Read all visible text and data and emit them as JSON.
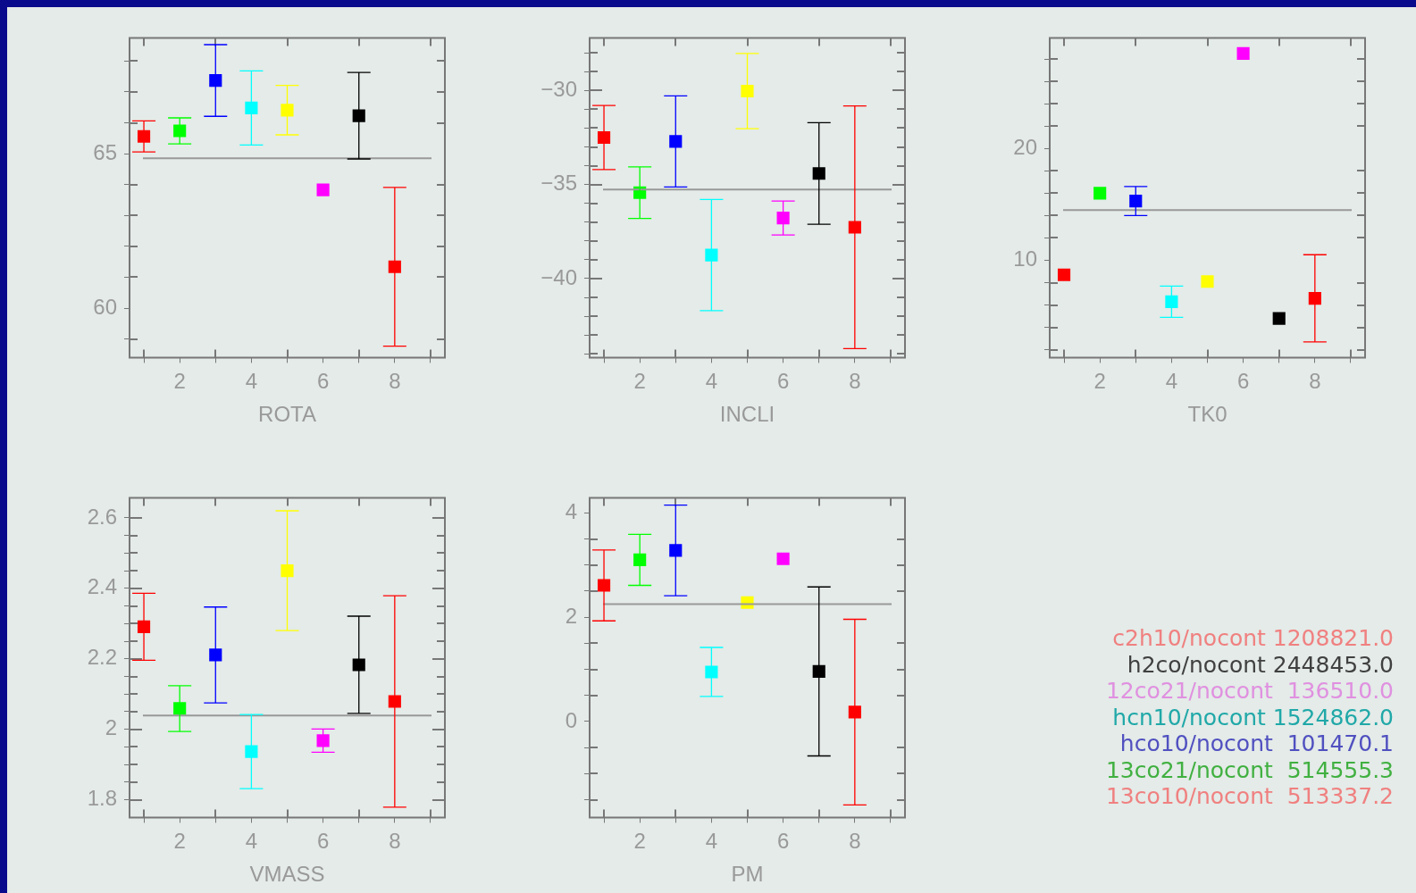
{
  "chart_data": [
    {
      "type": "scatter",
      "xlabel": "ROTA",
      "marker": "square",
      "grid": false,
      "legend": false,
      "x": [
        1,
        2,
        3,
        4,
        5,
        6,
        7,
        8
      ],
      "values": [
        65.56,
        65.74,
        67.37,
        66.48,
        66.41,
        63.83,
        66.23,
        61.34
      ],
      "errors": [
        0.5,
        0.42,
        1.16,
        1.2,
        0.8,
        null,
        1.4,
        2.57
      ],
      "colors": [
        "#ff0000",
        "#00ff00",
        "#0000ff",
        "#00ffff",
        "#ffff00",
        "#ff00ff",
        "#000000",
        "#ff0000"
      ],
      "ref_lines": [
        {
          "axis": "y",
          "value": 64.85,
          "color": "#999999"
        }
      ],
      "xlim": [
        0.6,
        9.4
      ],
      "xticks": [
        {
          "value": 1,
          "label": null
        },
        2,
        {
          "value": 3,
          "label": null
        },
        4,
        {
          "value": 5,
          "label": null
        },
        6,
        {
          "value": 7,
          "label": null
        },
        8,
        {
          "value": 9,
          "label": null
        }
      ],
      "ylim": [
        58.4,
        68.75
      ],
      "yticks": [
        {
          "value": 59,
          "label": null
        },
        60,
        {
          "value": 61,
          "label": null
        },
        {
          "value": 62,
          "label": null
        },
        {
          "value": 63,
          "label": null
        },
        {
          "value": 64,
          "label": null
        },
        65,
        {
          "value": 66,
          "label": null
        },
        {
          "value": 67,
          "label": null
        },
        {
          "value": 68,
          "label": null
        }
      ]
    },
    {
      "type": "scatter",
      "xlabel": "INCLI",
      "marker": "square",
      "grid": false,
      "legend": false,
      "x": [
        1,
        2,
        3,
        4,
        5,
        6,
        7,
        8
      ],
      "values": [
        -32.5,
        -35.43,
        -32.71,
        -38.75,
        -30.03,
        -36.78,
        -34.41,
        -37.27
      ],
      "errors": [
        1.7,
        1.37,
        2.42,
        2.96,
        2,
        0.9,
        2.7,
        6.45
      ],
      "colors": [
        "#ff0000",
        "#00ff00",
        "#0000ff",
        "#00ffff",
        "#ffff00",
        "#ff00ff",
        "#000000",
        "#ff0000"
      ],
      "ref_lines": [
        {
          "axis": "y",
          "value": -35.26,
          "color": "#999999"
        }
      ],
      "xlim": [
        0.6,
        9.4
      ],
      "xticks": [
        {
          "value": 1,
          "label": null
        },
        2,
        {
          "value": 3,
          "label": null
        },
        4,
        {
          "value": 5,
          "label": null
        },
        6,
        {
          "value": 7,
          "label": null
        },
        8,
        {
          "value": 9,
          "label": null
        }
      ],
      "ylim": [
        -44.2,
        -27.2
      ],
      "yticks": [
        {
          "value": -44,
          "label": null
        },
        {
          "value": -43,
          "label": null
        },
        {
          "value": -42,
          "label": null
        },
        {
          "value": -41,
          "label": null
        },
        {
          "value": -40,
          "label": "−40"
        },
        {
          "value": -39,
          "label": null
        },
        {
          "value": -38,
          "label": null
        },
        {
          "value": -37,
          "label": null
        },
        {
          "value": -36,
          "label": null
        },
        {
          "value": -35,
          "label": "−35"
        },
        {
          "value": -34,
          "label": null
        },
        {
          "value": -33,
          "label": null
        },
        {
          "value": -32,
          "label": null
        },
        {
          "value": -31,
          "label": null
        },
        {
          "value": -30,
          "label": "−30"
        },
        {
          "value": -29,
          "label": null
        },
        {
          "value": -28,
          "label": null
        }
      ]
    },
    {
      "type": "scatter",
      "xlabel": "TK0",
      "marker": "square",
      "grid": false,
      "legend": false,
      "x": [
        1,
        2,
        3,
        4,
        5,
        6,
        7,
        8
      ],
      "values": [
        8.7,
        16.0,
        15.3,
        6.3,
        8.1,
        28.5,
        4.8,
        6.6
      ],
      "errors": [
        null,
        null,
        1.3,
        1.4,
        null,
        null,
        null,
        3.9
      ],
      "colors": [
        "#ff0000",
        "#00ff00",
        "#0000ff",
        "#00ffff",
        "#ffff00",
        "#ff00ff",
        "#000000",
        "#ff0000"
      ],
      "ref_lines": [
        {
          "axis": "y",
          "value": 14.5,
          "color": "#999999"
        }
      ],
      "xlim": [
        0.6,
        9.4
      ],
      "xticks": [
        {
          "value": 1,
          "label": null
        },
        2,
        {
          "value": 3,
          "label": null
        },
        4,
        {
          "value": 5,
          "label": null
        },
        6,
        {
          "value": 7,
          "label": null
        },
        8,
        {
          "value": 9,
          "label": null
        }
      ],
      "ylim": [
        1.3,
        29.9
      ],
      "yticks": [
        {
          "value": 2,
          "label": null
        },
        {
          "value": 4,
          "label": null
        },
        {
          "value": 6,
          "label": null
        },
        {
          "value": 8,
          "label": null
        },
        10,
        {
          "value": 12,
          "label": null
        },
        {
          "value": 14,
          "label": null
        },
        {
          "value": 16,
          "label": null
        },
        {
          "value": 18,
          "label": null
        },
        20,
        {
          "value": 22,
          "label": null
        },
        {
          "value": 24,
          "label": null
        },
        {
          "value": 26,
          "label": null
        },
        {
          "value": 28,
          "label": null
        }
      ]
    },
    {
      "type": "scatter",
      "xlabel": "VMASS",
      "marker": "square",
      "grid": false,
      "legend": false,
      "x": [
        1,
        2,
        3,
        4,
        5,
        6,
        7,
        8
      ],
      "values": [
        2.291,
        2.059,
        2.211,
        1.937,
        2.45,
        1.968,
        2.183,
        2.079
      ],
      "errors": [
        0.095,
        0.065,
        0.136,
        0.105,
        0.17,
        0.033,
        0.138,
        0.3
      ],
      "colors": [
        "#ff0000",
        "#00ff00",
        "#0000ff",
        "#00ffff",
        "#ffff00",
        "#ff00ff",
        "#000000",
        "#ff0000"
      ],
      "ref_lines": [
        {
          "axis": "y",
          "value": 2.039,
          "color": "#999999"
        }
      ],
      "xlim": [
        0.6,
        9.4
      ],
      "xticks": [
        {
          "value": 1,
          "label": null
        },
        2,
        {
          "value": 3,
          "label": null
        },
        4,
        {
          "value": 5,
          "label": null
        },
        6,
        {
          "value": 7,
          "label": null
        },
        8,
        {
          "value": 9,
          "label": null
        }
      ],
      "ylim": [
        1.75,
        2.657
      ],
      "yticks": [
        1.8,
        {
          "value": 1.85,
          "label": null
        },
        {
          "value": 1.9,
          "label": null
        },
        {
          "value": 1.95,
          "label": null
        },
        2,
        {
          "value": 2.05,
          "label": null
        },
        {
          "value": 2.1,
          "label": null
        },
        {
          "value": 2.15,
          "label": null
        },
        2.2,
        {
          "value": 2.25,
          "label": null
        },
        {
          "value": 2.3,
          "label": null
        },
        {
          "value": 2.35,
          "label": null
        },
        2.4,
        {
          "value": 2.45,
          "label": null
        },
        {
          "value": 2.5,
          "label": null
        },
        {
          "value": 2.55,
          "label": null
        },
        2.6
      ]
    },
    {
      "type": "scatter",
      "xlabel": "PM",
      "marker": "square",
      "grid": false,
      "legend": false,
      "x": [
        1,
        2,
        3,
        4,
        5,
        6,
        7,
        8
      ],
      "values": [
        2.61,
        3.1,
        3.28,
        0.95,
        2.28,
        3.12,
        0.96,
        0.18
      ],
      "errors": [
        0.68,
        0.49,
        0.87,
        0.47,
        null,
        null,
        1.62,
        1.78
      ],
      "colors": [
        "#ff0000",
        "#00ff00",
        "#0000ff",
        "#00ffff",
        "#ffff00",
        "#ff00ff",
        "#000000",
        "#ff0000"
      ],
      "ref_lines": [
        {
          "axis": "y",
          "value": 2.25,
          "color": "#999999"
        }
      ],
      "xlim": [
        0.6,
        9.4
      ],
      "xticks": [
        {
          "value": 1,
          "label": null
        },
        2,
        {
          "value": 3,
          "label": null
        },
        4,
        {
          "value": 5,
          "label": null
        },
        6,
        {
          "value": 7,
          "label": null
        },
        8,
        {
          "value": 9,
          "label": null
        }
      ],
      "ylim": [
        -1.84,
        4.29
      ],
      "yticks": [
        {
          "value": -1.5,
          "label": null
        },
        {
          "value": -1,
          "label": null
        },
        {
          "value": -0.5,
          "label": null
        },
        0,
        {
          "value": 0.5,
          "label": null
        },
        {
          "value": 1,
          "label": null
        },
        {
          "value": 1.5,
          "label": null
        },
        2,
        {
          "value": 2.5,
          "label": null
        },
        {
          "value": 3,
          "label": null
        },
        {
          "value": 3.5,
          "label": null
        },
        4
      ]
    },
    {
      "type": "other",
      "annotations": [
        "c2h10/nocont 1208821.0",
        "h2co/nocont 2448453.0",
        "12co21/nocont  136510.0",
        "hcn10/nocont 1524862.0",
        "hco10/nocont  101470.1",
        "13co21/nocont  514555.3",
        "13co10/nocont  513337.2"
      ],
      "colors": [
        "#f08080",
        "#404040",
        "#e090e0",
        "#20a8a8",
        "#5050c0",
        "#40b040",
        "#f08080"
      ]
    }
  ]
}
